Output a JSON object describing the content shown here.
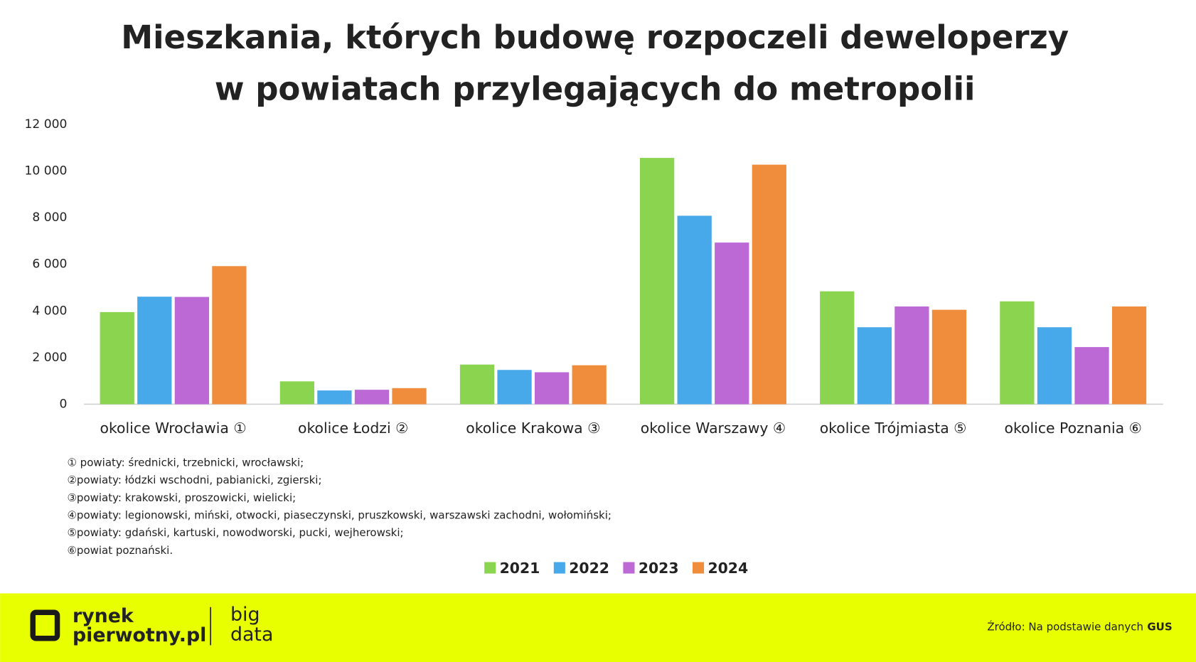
{
  "chart_data": {
    "type": "bar",
    "title": [
      "Mieszkania, których budowę rozpoczeli deweloperzy",
      "w powiatach przylegających do metropolii"
    ],
    "categories": [
      "okolice Wrocławia ①",
      "okolice Łodzi ②",
      "okolice Krakowa ③",
      "okolice Warszawy ④",
      "okolice Trójmiasta ⑤",
      "okolice Poznania ⑥"
    ],
    "series": [
      {
        "name": "2021",
        "color": "#8ad44f",
        "values": [
          3950,
          980,
          1700,
          10560,
          4840,
          4410
        ]
      },
      {
        "name": "2022",
        "color": "#48a9ea",
        "values": [
          4610,
          590,
          1470,
          8080,
          3300,
          3300
        ]
      },
      {
        "name": "2023",
        "color": "#bc69d6",
        "values": [
          4600,
          620,
          1370,
          6930,
          4190,
          2450
        ]
      },
      {
        "name": "2024",
        "color": "#f08d3c",
        "values": [
          5920,
          690,
          1670,
          10270,
          4050,
          4190
        ]
      }
    ],
    "ylim": [
      0,
      12000
    ],
    "yticks": [
      0,
      {
        "value": 2000,
        "label": "2 000"
      },
      {
        "value": 4000,
        "label": "4 000"
      },
      {
        "value": 6000,
        "label": "6 000"
      },
      {
        "value": 8000,
        "label": "8 000"
      },
      {
        "value": 10000,
        "label": "10 000"
      },
      {
        "value": 12000,
        "label": "12 000"
      }
    ],
    "grid": false,
    "legend": "bottom",
    "notes": [
      "① powiaty: średnicki, trzebnicki, wrocławski;",
      "②powiaty: łódzki wschodni, pabianicki, zgierski;",
      "③powiaty: krakowski, proszowicki, wielicki;",
      "④powiaty: legionowski, miński, otwocki, piaseczynski, pruszkowski, warszawski zachodni, wołomiński;",
      "⑤powiaty: gdański, kartuski, nowodworski, pucki, wejherowski;",
      "⑥powiat poznański."
    ]
  },
  "footer": {
    "brand": [
      "rynek",
      "pierwotny.pl"
    ],
    "tag": [
      "big",
      "data"
    ],
    "source": "Źródło: Na podstawie danych",
    "source_bold": "GUS"
  }
}
